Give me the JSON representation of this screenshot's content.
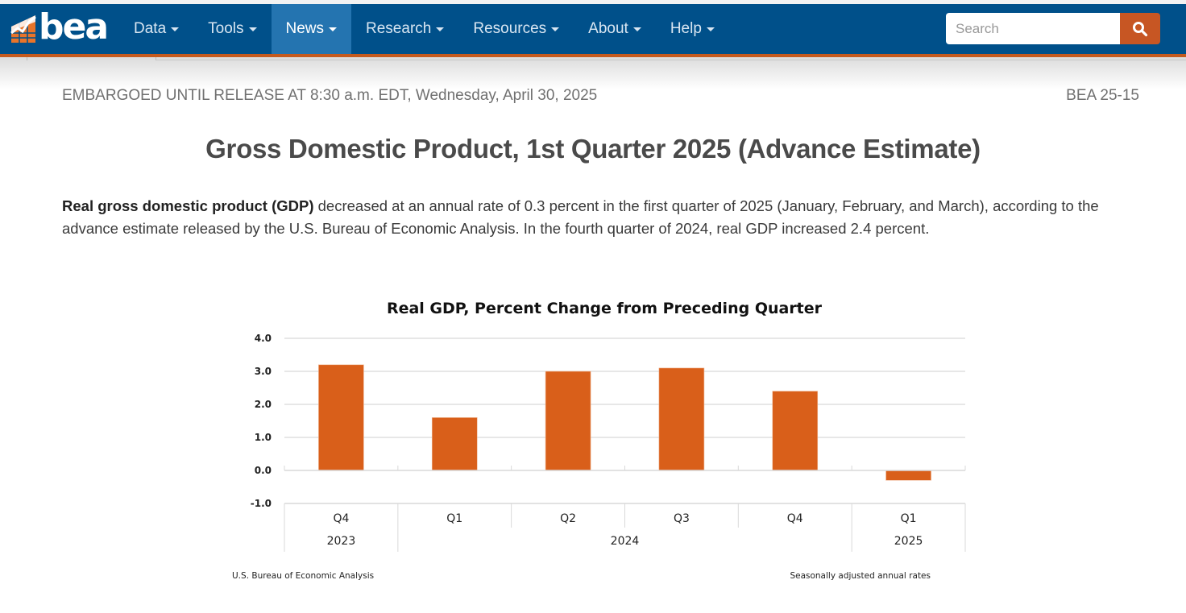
{
  "nav": {
    "logo_text": "bea",
    "items": [
      {
        "label": "Data",
        "active": false
      },
      {
        "label": "Tools",
        "active": false
      },
      {
        "label": "News",
        "active": true
      },
      {
        "label": "Research",
        "active": false
      },
      {
        "label": "Resources",
        "active": false
      },
      {
        "label": "About",
        "active": false
      },
      {
        "label": "Help",
        "active": false
      }
    ],
    "search_placeholder": "Search",
    "search_icon": "magnifier-icon",
    "colors": {
      "bar": "#00508a",
      "active": "#2474b0",
      "accent": "#c75623"
    }
  },
  "release": {
    "embargo": "EMBARGOED UNTIL RELEASE AT 8:30 a.m. EDT, Wednesday, April 30, 2025",
    "release_number": "BEA 25-15",
    "title": "Gross Domestic Product, 1st Quarter 2025 (Advance Estimate)",
    "intro_bold": "Real gross domestic product (GDP)",
    "intro_rest": " decreased at an annual rate of 0.3 percent in the first quarter of 2025 (January, February, and March), according to the advance estimate released by the U.S. Bureau of Economic Analysis. In the fourth quarter of 2024, real GDP increased 2.4 percent."
  },
  "chart_data": {
    "type": "bar",
    "title": "Real GDP, Percent Change from Preceding Quarter",
    "categories": [
      "Q4",
      "Q1",
      "Q2",
      "Q3",
      "Q4",
      "Q1"
    ],
    "groups": [
      {
        "label": "2023",
        "count": 1
      },
      {
        "label": "2024",
        "count": 4
      },
      {
        "label": "2025",
        "count": 1
      }
    ],
    "values": [
      3.2,
      1.6,
      3.0,
      3.1,
      2.4,
      -0.3
    ],
    "ylim": [
      -1.0,
      4.0
    ],
    "yticks": [
      "4.0",
      "3.0",
      "2.0",
      "1.0",
      "0.0",
      "-1.0"
    ],
    "ytick_values": [
      4,
      3,
      2,
      1,
      0,
      -1
    ],
    "xlabel": "",
    "ylabel": "",
    "grid": true,
    "bar_color": "#d95f1a",
    "source_note": "U.S. Bureau of Economic Analysis",
    "rate_note": "Seasonally adjusted annual rates"
  }
}
